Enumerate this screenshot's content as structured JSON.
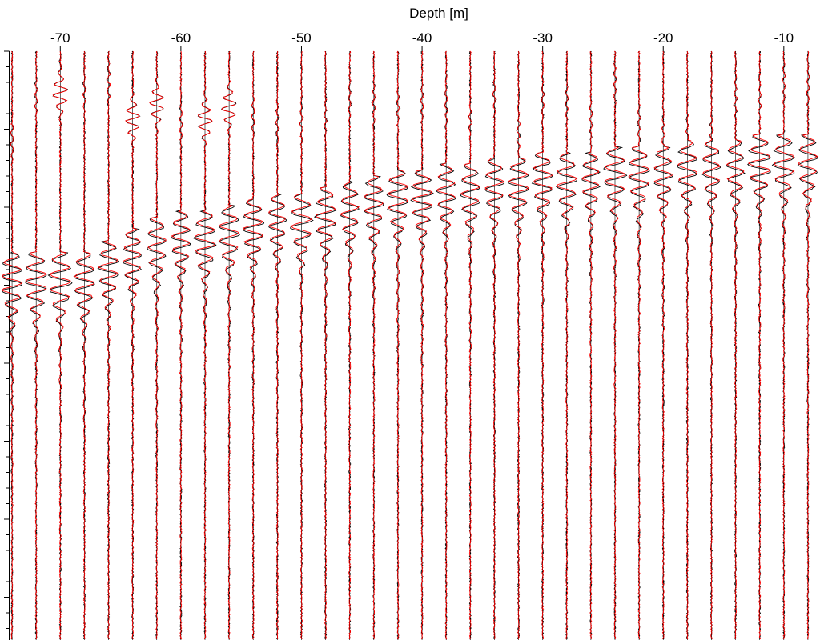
{
  "chart_data": {
    "type": "line",
    "title": "",
    "xlabel": "Depth [m]",
    "ylabel": "",
    "xlim": [
      -75,
      -7
    ],
    "x_ticks": [
      -70,
      -60,
      -50,
      -40,
      -30,
      -20,
      -10
    ],
    "tick_labels": [
      "-70",
      "-60",
      "-50",
      "-40",
      "-30",
      "-20",
      "-10"
    ],
    "x_axis_position": "top",
    "grid": false,
    "legend": "none",
    "trace_depths": [
      -74,
      -72,
      -70,
      -68,
      -66,
      -64,
      -62,
      -60,
      -58,
      -56,
      -54,
      -52,
      -50,
      -48,
      -46,
      -44,
      -42,
      -40,
      -38,
      -36,
      -34,
      -32,
      -30,
      -28,
      -26,
      -24,
      -22,
      -20,
      -18,
      -16,
      -14,
      -12,
      -10,
      -8
    ],
    "first_arrival_fraction": [
      0.35,
      0.35,
      0.35,
      0.35,
      0.33,
      0.31,
      0.29,
      0.28,
      0.28,
      0.27,
      0.26,
      0.25,
      0.25,
      0.24,
      0.23,
      0.22,
      0.21,
      0.21,
      0.2,
      0.2,
      0.19,
      0.19,
      0.18,
      0.18,
      0.18,
      0.17,
      0.17,
      0.17,
      0.16,
      0.16,
      0.16,
      0.15,
      0.15,
      0.15
    ],
    "series": [
      {
        "color": "#000000"
      },
      {
        "color": "#ff0000"
      }
    ]
  }
}
